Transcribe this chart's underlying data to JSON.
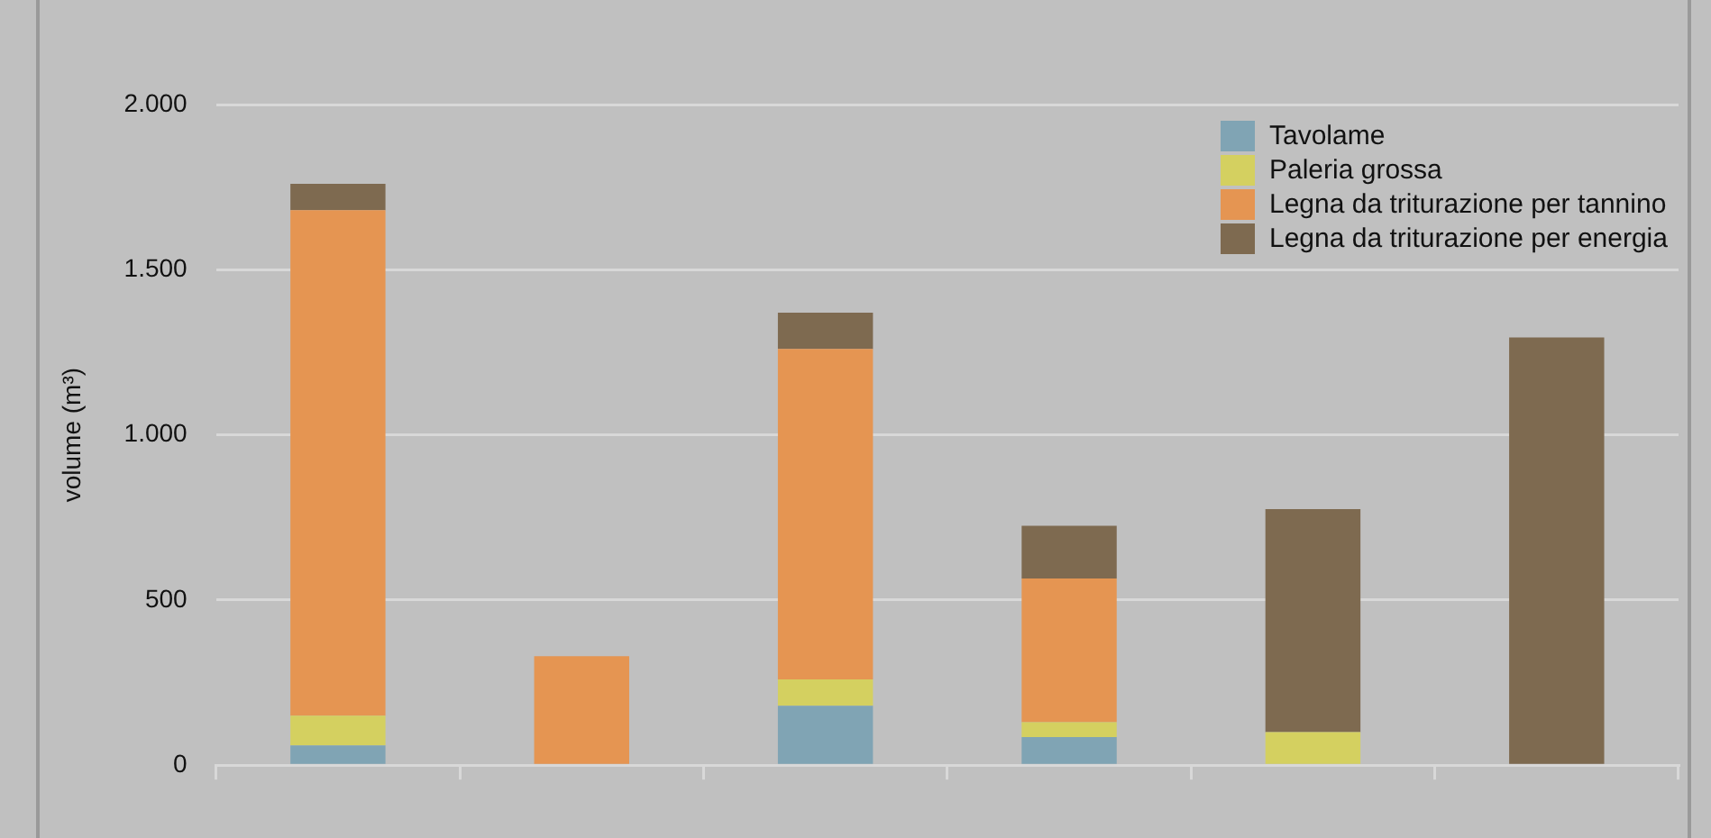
{
  "chart_data": {
    "type": "bar",
    "ylabel": "volume (m³)",
    "categories": [
      null,
      null,
      null,
      null,
      null,
      null
    ],
    "stacked": true,
    "series": [
      {
        "name": "Tavolame",
        "color": "#80a4b4",
        "values": [
          60,
          0,
          180,
          85,
          0,
          0
        ]
      },
      {
        "name": "Paleria grossa",
        "color": "#d4d060",
        "values": [
          90,
          0,
          80,
          45,
          100,
          0
        ]
      },
      {
        "name": "Legna da triturazione per tannino",
        "color": "#e59552",
        "values": [
          1530,
          330,
          1000,
          435,
          0,
          0
        ]
      },
      {
        "name": "Legna da triturazione per energia",
        "color": "#7e6a50",
        "values": [
          80,
          0,
          110,
          160,
          675,
          1295
        ]
      }
    ],
    "ylim": [
      0,
      2000
    ],
    "yticks": [
      {
        "value": 0,
        "label": "0"
      },
      {
        "value": 500,
        "label": "500"
      },
      {
        "value": 1000,
        "label": "1.000"
      },
      {
        "value": 1500,
        "label": "1.500"
      },
      {
        "value": 2000,
        "label": "2.000"
      }
    ],
    "grid": "y",
    "legend": "top right"
  }
}
